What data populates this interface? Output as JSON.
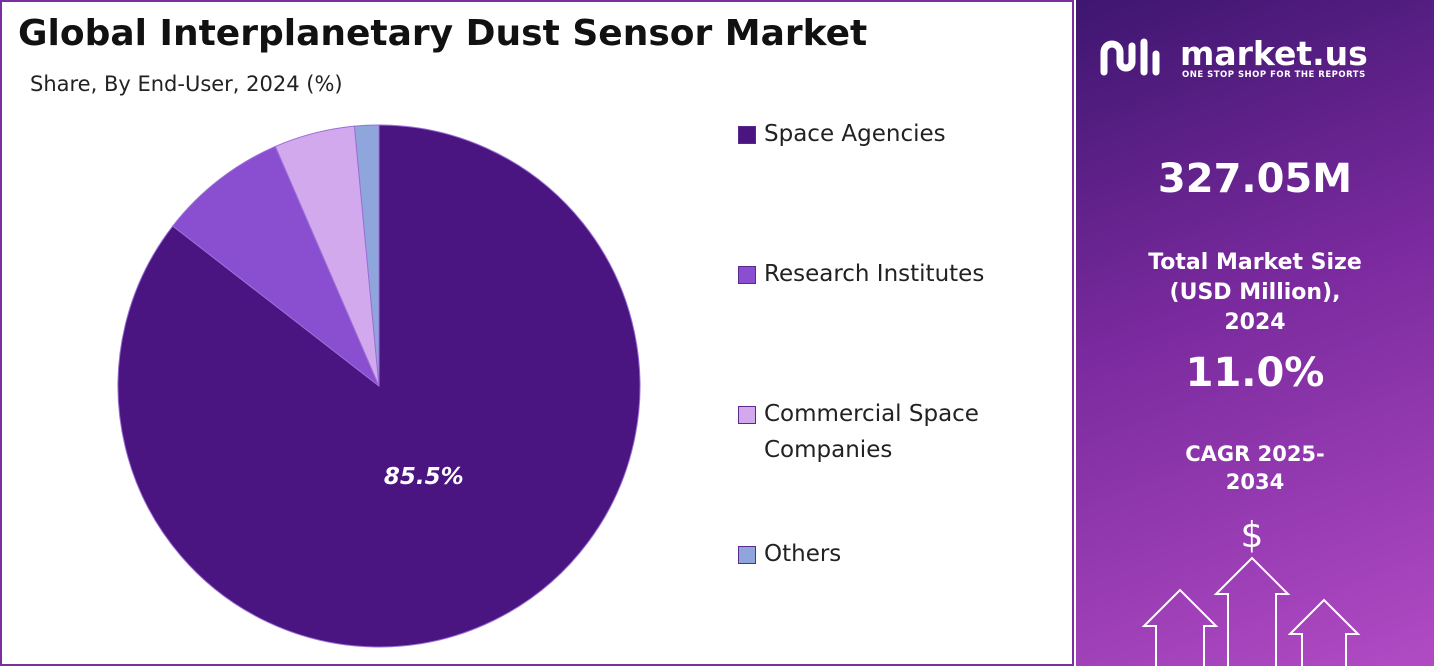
{
  "chart_data": {
    "type": "pie",
    "title": "Global Interplanetary Dust Sensor Market",
    "subtitle": "Share, By End-User, 2024 (%)",
    "categories": [
      "Space Agencies",
      "Research Institutes",
      "Commercial Space Companies",
      "Others"
    ],
    "values": [
      85.5,
      8.0,
      5.0,
      1.5
    ],
    "value_labels": [
      "85.5%",
      null,
      null,
      null
    ],
    "colors": [
      "#4a1580",
      "#8a4fd0",
      "#d3a9ee",
      "#8fa6dc"
    ]
  },
  "panel": {
    "brand": "market.us",
    "tagline": "ONE STOP SHOP FOR THE REPORTS",
    "market_size": "327.05M",
    "market_size_label": "Total Market Size (USD Million), 2024",
    "cagr": "11.0%",
    "cagr_label": "CAGR 2025-2034",
    "symbol": "$"
  }
}
